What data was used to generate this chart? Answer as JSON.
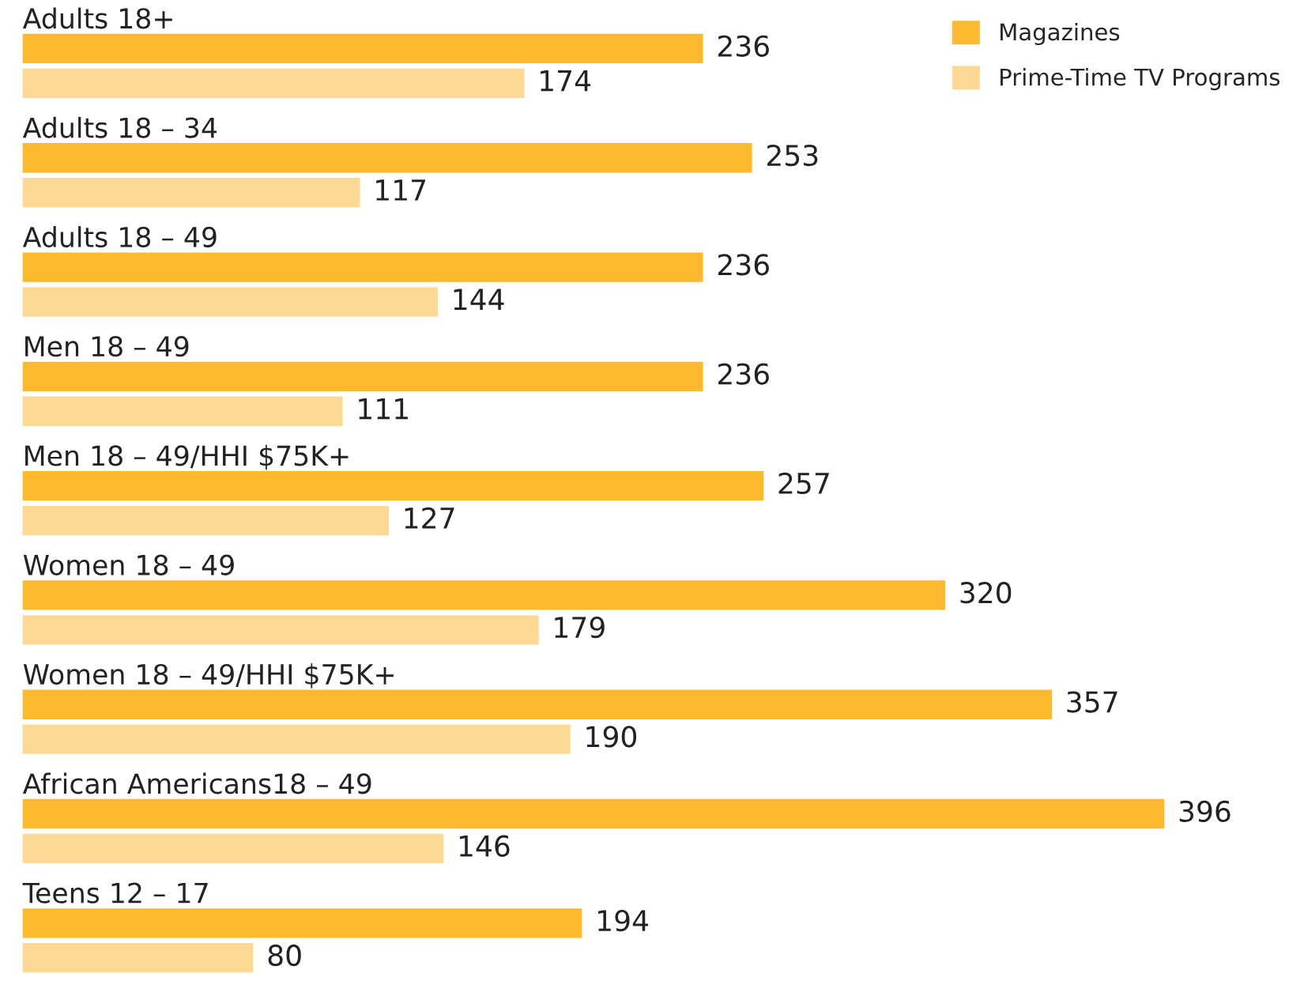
{
  "chart_data": {
    "type": "bar",
    "orientation": "horizontal",
    "categories": [
      "Adults 18+",
      "Adults 18 – 34",
      "Adults 18 – 49",
      "Men 18 – 49",
      "Men 18 – 49/HHI $75K+",
      "Women 18 – 49",
      "Women 18 – 49/HHI $75K+",
      "African Americans18 – 49",
      "Teens 12 – 17"
    ],
    "series": [
      {
        "name": "Magazines",
        "color": "#fdb92f",
        "values": [
          236,
          253,
          236,
          236,
          257,
          320,
          357,
          396,
          194
        ]
      },
      {
        "name": "Prime-Time TV Programs",
        "color": "#fed895",
        "values": [
          174,
          117,
          144,
          111,
          127,
          179,
          190,
          146,
          80
        ]
      }
    ],
    "data_labels": true,
    "legend": "top right"
  }
}
